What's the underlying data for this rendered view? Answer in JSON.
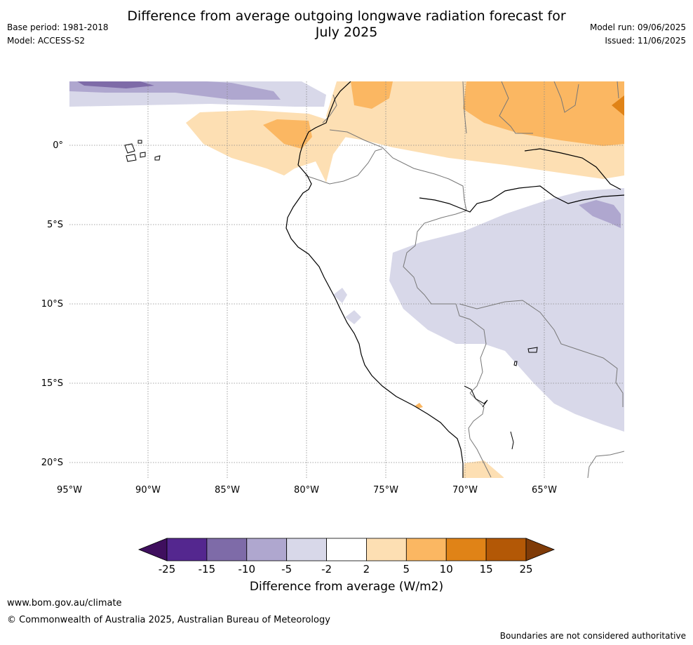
{
  "title": "Difference from average outgoing longwave radiation forecast for July 2025",
  "title_line1": "Difference from average outgoing longwave radiation forecast for",
  "title_line2": "July 2025",
  "base_period": "Base period: 1981-2018",
  "model": "Model: ACCESS-S2",
  "model_run": "Model run: 09/06/2025",
  "issued": "Issued: 11/06/2025",
  "lon_ticks": [
    "95°W",
    "90°W",
    "85°W",
    "80°W",
    "75°W",
    "70°W",
    "65°W"
  ],
  "lat_ticks": [
    "0°",
    "5°S",
    "10°S",
    "15°S",
    "20°S"
  ],
  "colorbar": {
    "label": "Difference from average (W/m2)",
    "ticks": [
      "-25",
      "-15",
      "-10",
      "-5",
      "-2",
      "2",
      "5",
      "10",
      "15",
      "25"
    ],
    "colors": [
      "#3f0f5e",
      "#54278f",
      "#7e6ba8",
      "#afa7cf",
      "#d8d8e9",
      "#ffffff",
      "#fddfb3",
      "#fbb762",
      "#e08317",
      "#b35806",
      "#7f3b08"
    ]
  },
  "footer": {
    "url": "www.bom.gov.au/climate",
    "copyright": "© Commonwealth of Australia 2025, Australian Bureau of Meteorology",
    "note": "Boundaries are not considered authoritative"
  }
}
